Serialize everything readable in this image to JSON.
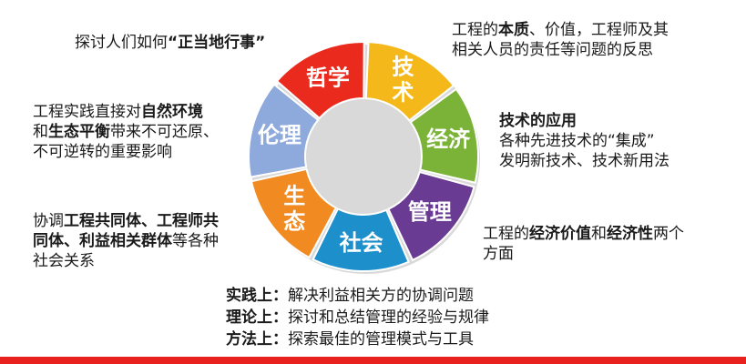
{
  "wheel": {
    "segments": [
      {
        "id": "philosophy",
        "label": "哲学",
        "color": "#ea2a1d",
        "vertical": false
      },
      {
        "id": "technology",
        "label": "技术",
        "color": "#f4b81a",
        "vertical": true
      },
      {
        "id": "economy",
        "label": "经济",
        "color": "#7ab338",
        "vertical": false
      },
      {
        "id": "management",
        "label": "管理",
        "color": "#6a3b92",
        "vertical": false
      },
      {
        "id": "society",
        "label": "社会",
        "color": "#1d8fcb",
        "vertical": false
      },
      {
        "id": "ecology",
        "label": "生态",
        "color": "#f08a21",
        "vertical": true
      },
      {
        "id": "ethics",
        "label": "伦理",
        "color": "#8eaadc",
        "vertical": false
      }
    ]
  },
  "ethics": {
    "pre": "探讨人们如何",
    "quote": "“正当地行事”"
  },
  "philosophy": {
    "line1_pre": "工程的",
    "line1_b1": "本质",
    "line1_post": "、价值，工程师及其",
    "line2": "相关人员的责任等问题的反思"
  },
  "ecology": {
    "line1_pre": "工程实践直接对",
    "line1_b": "自然环境",
    "line2_pre": "和",
    "line2_b": "生态平衡",
    "line2_post": "带来不可还原、",
    "line3": "不可逆转的重要影响"
  },
  "technology": {
    "line1": "技术的应用",
    "line2": "各种先进技术的“集成”",
    "line3": "发明新技术、技术新用法"
  },
  "society": {
    "line1_pre": "协调",
    "line1_b": "工程共同体、工程师共",
    "line2_b": "同体、利益相关群体",
    "line2_post": "等各种",
    "line3": "社会关系"
  },
  "economy": {
    "line1_pre": "工程的",
    "line1_b1": "经济价值",
    "line1_mid": "和",
    "line1_b2": "经济性",
    "line1_post": "两个",
    "line2": "方面"
  },
  "management": {
    "lines": [
      {
        "key": "实践上：",
        "value": "解决利益相关方的协调问题"
      },
      {
        "key": "理论上：",
        "value": "探讨和总结管理的经验与规律"
      },
      {
        "key": "方法上：",
        "value": "探索最佳的管理模式与工具"
      }
    ]
  }
}
